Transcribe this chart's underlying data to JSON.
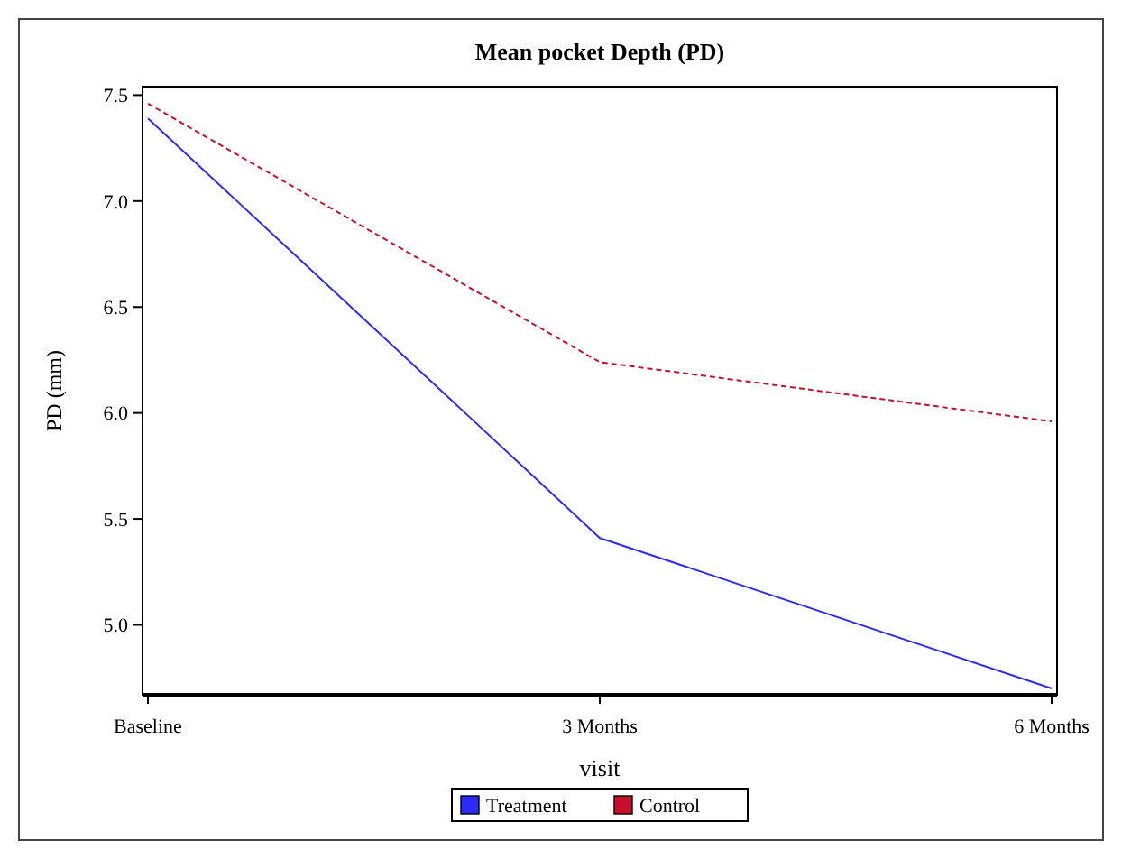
{
  "chart_data": {
    "type": "line",
    "title": "Mean pocket Depth (PD)",
    "xlabel": "visit",
    "ylabel": "PD (mm)",
    "categories": [
      "Baseline",
      "3 Months",
      "6 Months"
    ],
    "series": [
      {
        "name": "Treatment",
        "color": "#2b2bff",
        "values": [
          7.39,
          5.41,
          4.7
        ],
        "line_style": "solid"
      },
      {
        "name": "Control",
        "color": "#c8102e",
        "values": [
          7.46,
          6.24,
          5.96
        ],
        "line_style": "dashed"
      }
    ],
    "ylim": [
      4.67,
      7.54
    ],
    "yticks": [
      {
        "value": 5,
        "label": "5.0"
      },
      5.5,
      {
        "value": 6,
        "label": "6.0"
      },
      6.5,
      {
        "value": 7,
        "label": "7.0"
      },
      7.5
    ],
    "grid": false,
    "legend": "bottom",
    "marker": "none"
  }
}
